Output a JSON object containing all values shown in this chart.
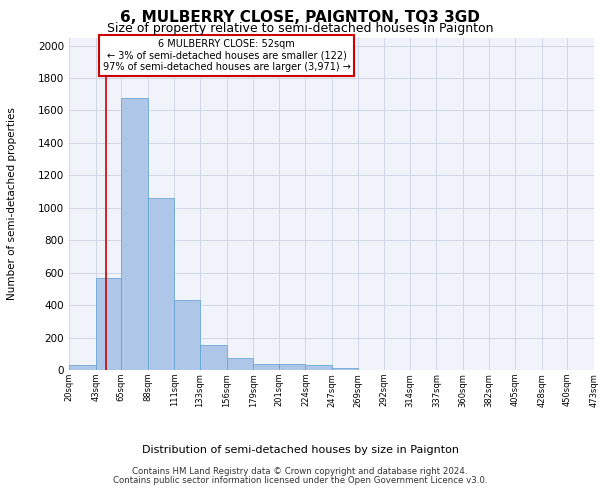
{
  "title": "6, MULBERRY CLOSE, PAIGNTON, TQ3 3GD",
  "subtitle": "Size of property relative to semi-detached houses in Paignton",
  "xlabel": "Distribution of semi-detached houses by size in Paignton",
  "ylabel": "Number of semi-detached properties",
  "footer_line1": "Contains HM Land Registry data © Crown copyright and database right 2024.",
  "footer_line2": "Contains public sector information licensed under the Open Government Licence v3.0.",
  "annotation_title": "6 MULBERRY CLOSE: 52sqm",
  "annotation_line1": "← 3% of semi-detached houses are smaller (122)",
  "annotation_line2": "97% of semi-detached houses are larger (3,971) →",
  "property_size": 52,
  "bar_left_edges": [
    20,
    43,
    65,
    88,
    111,
    133,
    156,
    179,
    201,
    224,
    247,
    269,
    292,
    314,
    337,
    360,
    382,
    405,
    428,
    450
  ],
  "bar_widths": [
    23,
    22,
    23,
    23,
    22,
    23,
    23,
    22,
    23,
    23,
    22,
    23,
    22,
    23,
    23,
    22,
    23,
    23,
    22,
    23
  ],
  "bar_heights": [
    30,
    570,
    1680,
    1060,
    430,
    155,
    75,
    35,
    35,
    30,
    15,
    0,
    0,
    0,
    0,
    0,
    0,
    0,
    0,
    0
  ],
  "tick_labels": [
    "20sqm",
    "43sqm",
    "65sqm",
    "88sqm",
    "111sqm",
    "133sqm",
    "156sqm",
    "179sqm",
    "201sqm",
    "224sqm",
    "247sqm",
    "269sqm",
    "292sqm",
    "314sqm",
    "337sqm",
    "360sqm",
    "382sqm",
    "405sqm",
    "428sqm",
    "450sqm",
    "473sqm"
  ],
  "bar_color": "#aec6e8",
  "bar_edge_color": "#5a9fd4",
  "grid_color": "#d0d8e8",
  "vline_color": "#cc0000",
  "vline_x": 52,
  "box_edge_color": "#cc0000",
  "ylim": [
    0,
    2050
  ],
  "yticks": [
    0,
    200,
    400,
    600,
    800,
    1000,
    1200,
    1400,
    1600,
    1800,
    2000
  ],
  "bg_color": "#f0f4fa",
  "title_fontsize": 11,
  "subtitle_fontsize": 9,
  "xlabel_fontsize": 8,
  "ylabel_fontsize": 7.5
}
